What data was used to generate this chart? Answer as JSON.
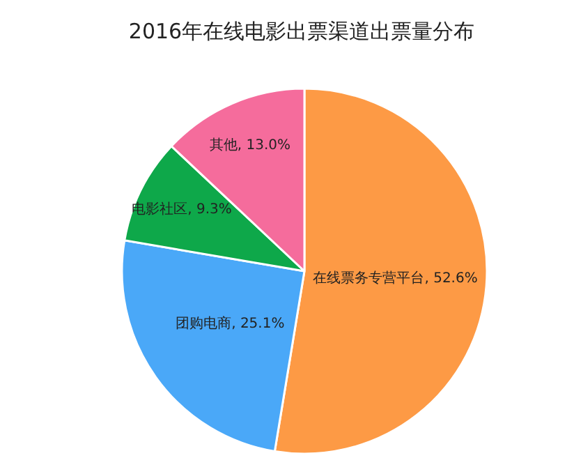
{
  "chart_data": {
    "type": "pie",
    "title": "2016年在线电影出票渠道出票量分布",
    "categories": [
      "在线票务专营平台",
      "团购电商",
      "电影社区",
      "其他"
    ],
    "values": [
      52.6,
      25.1,
      9.3,
      13.0
    ],
    "colors": [
      "#fd9a45",
      "#4aa8f8",
      "#0ea84a",
      "#f56c9c"
    ],
    "value_labels": [
      "52.6%",
      "25.1%",
      "9.3%",
      "13.0%"
    ]
  }
}
